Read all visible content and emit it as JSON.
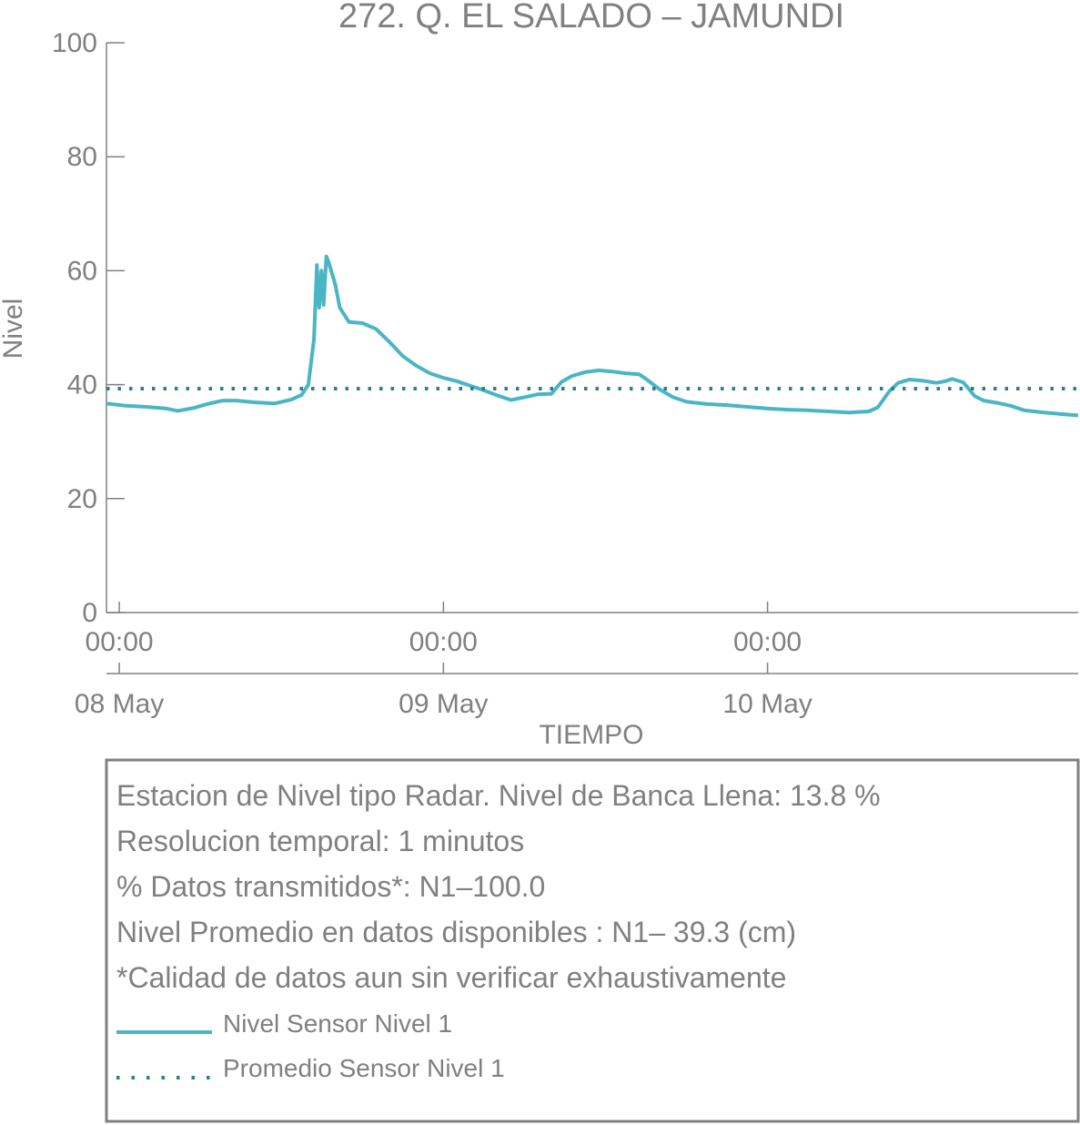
{
  "chart_data": {
    "type": "line",
    "title": "272. Q. EL SALADO – JAMUNDI",
    "ylabel": "Nivel",
    "xlabel": "TIEMPO",
    "ylim": [
      0,
      100
    ],
    "yticks": [
      0,
      20,
      40,
      60,
      80,
      100
    ],
    "xlim": [
      "2023-05-07T23:03",
      "2023-05-10T23:00"
    ],
    "xticks": [
      {
        "time": "2023-05-08T00:00",
        "label": "00:00",
        "date_label": "08 May"
      },
      {
        "time": "2023-05-09T00:00",
        "label": "00:00",
        "date_label": "09 May"
      },
      {
        "time": "2023-05-10T00:00",
        "label": "00:00",
        "date_label": "10 May"
      }
    ],
    "grid": false,
    "series": [
      {
        "name": "Nivel Sensor Nivel 1",
        "style": "solid",
        "color": "#4ab5c4",
        "points": [
          [
            "2023-05-07T23:03",
            36.7
          ],
          [
            "2023-05-08T00:30",
            36.3
          ],
          [
            "2023-05-08T02:00",
            36.1
          ],
          [
            "2023-05-08T03:30",
            35.8
          ],
          [
            "2023-05-08T04:20",
            35.4
          ],
          [
            "2023-05-08T05:30",
            35.9
          ],
          [
            "2023-05-08T06:30",
            36.6
          ],
          [
            "2023-05-08T07:40",
            37.2
          ],
          [
            "2023-05-08T08:40",
            37.2
          ],
          [
            "2023-05-08T10:00",
            36.9
          ],
          [
            "2023-05-08T11:30",
            36.7
          ],
          [
            "2023-05-08T12:45",
            37.4
          ],
          [
            "2023-05-08T13:30",
            38.2
          ],
          [
            "2023-05-08T14:00",
            40.0
          ],
          [
            "2023-05-08T14:25",
            48.0
          ],
          [
            "2023-05-08T14:38",
            61.0
          ],
          [
            "2023-05-08T14:48",
            53.5
          ],
          [
            "2023-05-08T14:58",
            60.0
          ],
          [
            "2023-05-08T15:08",
            54.0
          ],
          [
            "2023-05-08T15:20",
            62.5
          ],
          [
            "2023-05-08T15:30",
            61.5
          ],
          [
            "2023-05-08T15:45",
            59.5
          ],
          [
            "2023-05-08T16:00",
            57.5
          ],
          [
            "2023-05-08T16:20",
            53.5
          ],
          [
            "2023-05-08T17:00",
            51.0
          ],
          [
            "2023-05-08T18:00",
            50.8
          ],
          [
            "2023-05-08T19:00",
            49.8
          ],
          [
            "2023-05-08T20:00",
            47.5
          ],
          [
            "2023-05-08T21:00",
            45.0
          ],
          [
            "2023-05-08T22:00",
            43.3
          ],
          [
            "2023-05-08T23:00",
            42.0
          ],
          [
            "2023-05-09T00:00",
            41.2
          ],
          [
            "2023-05-09T01:00",
            40.6
          ],
          [
            "2023-05-09T02:00",
            39.8
          ],
          [
            "2023-05-09T03:00",
            39.0
          ],
          [
            "2023-05-09T04:00",
            38.1
          ],
          [
            "2023-05-09T05:00",
            37.3
          ],
          [
            "2023-05-09T06:00",
            37.8
          ],
          [
            "2023-05-09T07:00",
            38.3
          ],
          [
            "2023-05-09T08:00",
            38.4
          ],
          [
            "2023-05-09T08:45",
            40.5
          ],
          [
            "2023-05-09T09:30",
            41.5
          ],
          [
            "2023-05-09T10:30",
            42.2
          ],
          [
            "2023-05-09T11:30",
            42.5
          ],
          [
            "2023-05-09T12:30",
            42.3
          ],
          [
            "2023-05-09T13:30",
            42.0
          ],
          [
            "2023-05-09T14:30",
            41.8
          ],
          [
            "2023-05-09T15:00",
            41.0
          ],
          [
            "2023-05-09T16:00",
            39.2
          ],
          [
            "2023-05-09T17:00",
            37.8
          ],
          [
            "2023-05-09T18:00",
            37.0
          ],
          [
            "2023-05-09T19:30",
            36.6
          ],
          [
            "2023-05-09T21:00",
            36.4
          ],
          [
            "2023-05-09T22:30",
            36.1
          ],
          [
            "2023-05-10T00:00",
            35.8
          ],
          [
            "2023-05-10T01:30",
            35.6
          ],
          [
            "2023-05-10T03:00",
            35.5
          ],
          [
            "2023-05-10T04:30",
            35.3
          ],
          [
            "2023-05-10T06:00",
            35.1
          ],
          [
            "2023-05-10T07:30",
            35.3
          ],
          [
            "2023-05-10T08:10",
            36.0
          ],
          [
            "2023-05-10T09:00",
            38.8
          ],
          [
            "2023-05-10T09:40",
            40.3
          ],
          [
            "2023-05-10T10:30",
            40.9
          ],
          [
            "2023-05-10T11:30",
            40.7
          ],
          [
            "2023-05-10T12:30",
            40.3
          ],
          [
            "2023-05-10T13:10",
            40.6
          ],
          [
            "2023-05-10T13:40",
            41.0
          ],
          [
            "2023-05-10T14:30",
            40.4
          ],
          [
            "2023-05-10T15:20",
            38.0
          ],
          [
            "2023-05-10T16:00",
            37.2
          ],
          [
            "2023-05-10T17:00",
            36.8
          ],
          [
            "2023-05-10T18:00",
            36.3
          ],
          [
            "2023-05-10T19:00",
            35.5
          ],
          [
            "2023-05-10T20:30",
            35.1
          ],
          [
            "2023-05-10T22:00",
            34.8
          ],
          [
            "2023-05-10T23:00",
            34.6
          ]
        ]
      },
      {
        "name": "Promedio Sensor Nivel 1",
        "style": "dotted",
        "color": "#2a7f93",
        "constant": 39.3
      }
    ]
  },
  "info_box": {
    "lines": [
      "Estacion de Nivel tipo Radar. Nivel de Banca Llena: 13.8 %",
      "Resolucion temporal: 1 minutos",
      "% Datos transmitidos*: N1–100.0",
      "Nivel Promedio en datos disponibles : N1– 39.3 (cm)",
      "*Calidad de datos aun sin verificar exhaustivamente"
    ],
    "legend": [
      {
        "label": "Nivel Sensor Nivel 1",
        "style": "solid",
        "color": "#4ab5c4"
      },
      {
        "label": "Promedio Sensor Nivel 1",
        "style": "dotted",
        "color": "#2a7f93"
      }
    ]
  }
}
